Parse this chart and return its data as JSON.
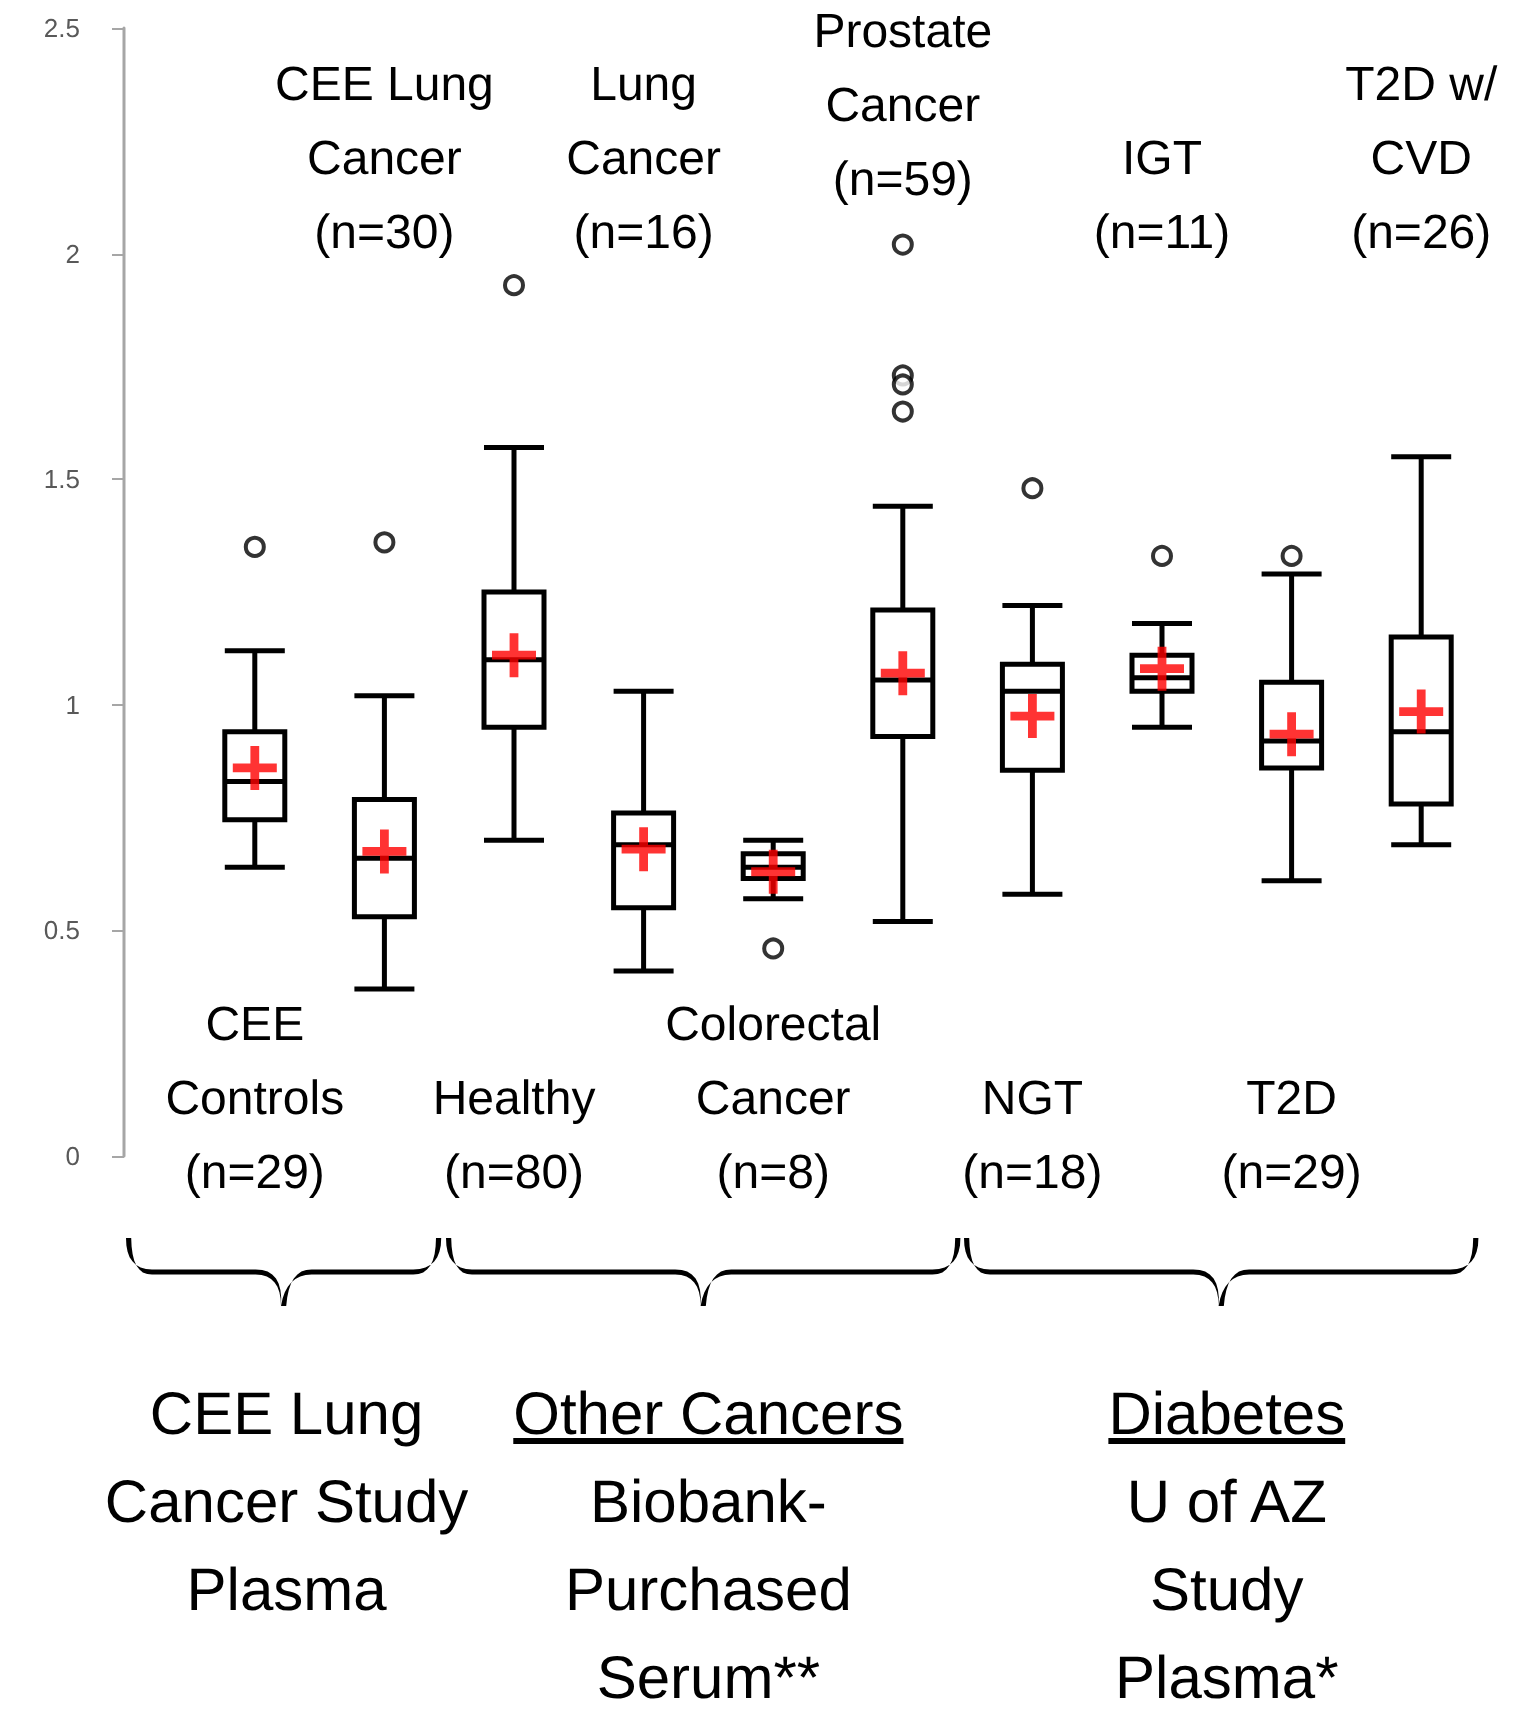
{
  "chart_data": {
    "type": "box",
    "categories": [
      "CEE\nControls\n(n=29)",
      "CEE Lung\nCancer\n(n=30)",
      "Healthy\n(n=80)",
      "Lung\nCancer\n(n=16)",
      "Colorectal\nCancer\n(n=8)",
      "Prostate\nCancer\n(n=59)",
      "NGT\n(n=18)",
      "IGT\n(n=11)",
      "T2D\n(n=29)",
      "T2D w/\nCVD\n(n=26)"
    ],
    "series": [
      {
        "color": "#000000",
        "boxes": [
          {
            "low": 0.64,
            "q1": 0.745,
            "median": 0.83,
            "q3": 0.94,
            "high": 1.12,
            "mean": 0.86,
            "outliers": [
              1.35
            ]
          },
          {
            "low": 0.37,
            "q1": 0.53,
            "median": 0.66,
            "q3": 0.79,
            "high": 1.02,
            "mean": 0.675,
            "outliers": [
              1.36
            ]
          },
          {
            "low": 0.7,
            "q1": 0.95,
            "median": 1.1,
            "q3": 1.25,
            "high": 1.57,
            "mean": 1.11,
            "outliers": [
              1.93
            ]
          },
          {
            "low": 0.41,
            "q1": 0.55,
            "median": 0.69,
            "q3": 0.76,
            "high": 1.03,
            "mean": 0.68
          },
          {
            "low": 0.57,
            "q1": 0.615,
            "median": 0.64,
            "q3": 0.67,
            "high": 0.7,
            "mean": 0.63,
            "outliers": [
              0.46
            ]
          },
          {
            "low": 0.52,
            "q1": 0.93,
            "median": 1.055,
            "q3": 1.21,
            "high": 1.44,
            "mean": 1.07,
            "outliers": [
              2.02,
              1.73,
              1.71,
              1.65
            ]
          },
          {
            "low": 0.58,
            "q1": 0.855,
            "median": 1.03,
            "q3": 1.09,
            "high": 1.22,
            "mean": 0.975,
            "outliers": [
              1.48
            ]
          },
          {
            "low": 0.95,
            "q1": 1.03,
            "median": 1.06,
            "q3": 1.11,
            "high": 1.18,
            "mean": 1.08,
            "outliers": [
              1.33
            ]
          },
          {
            "low": 0.61,
            "q1": 0.86,
            "median": 0.92,
            "q3": 1.05,
            "high": 1.29,
            "mean": 0.935,
            "outliers": [
              1.33
            ]
          },
          {
            "low": 0.69,
            "q1": 0.78,
            "median": 0.94,
            "q3": 1.15,
            "high": 1.55,
            "mean": 0.985
          }
        ]
      }
    ],
    "marker": "cross",
    "ylim": [
      0,
      2.5
    ],
    "yticks": [
      0,
      0.5,
      1,
      1.5,
      2,
      2.5
    ],
    "annotations": [
      "CEE Lung Cancer Study Plasma",
      "Other Cancers",
      "Biobank-Purchased Serum**",
      "Diabetes",
      "U of AZ Study Plasma*"
    ]
  }
}
